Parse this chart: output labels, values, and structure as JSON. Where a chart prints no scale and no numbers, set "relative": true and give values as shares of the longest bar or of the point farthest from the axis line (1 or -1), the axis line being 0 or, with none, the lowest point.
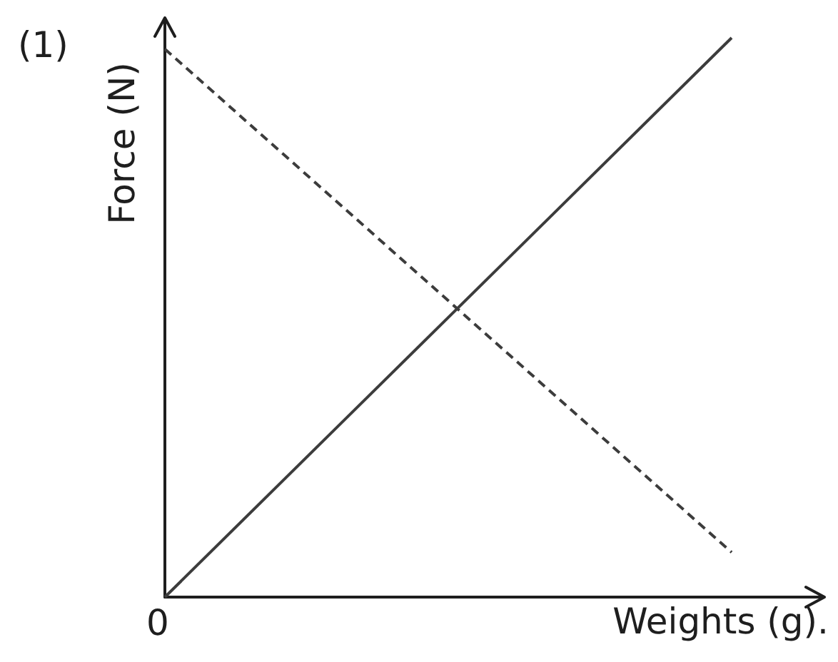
{
  "chart_data": {
    "type": "line",
    "title": "(1)",
    "xlabel": "Weights (g).",
    "ylabel": "Force (N)",
    "categories": [
      null,
      null
    ],
    "relative": true,
    "annotations": [
      "0"
    ],
    "series": [
      {
        "color": "#3c3c3c",
        "values": [
          0,
          1
        ],
        "line_style": "solid"
      },
      {
        "color": "#3c3c3c",
        "values": [
          0.98,
          0.08
        ],
        "line_style": "dashed"
      }
    ]
  }
}
